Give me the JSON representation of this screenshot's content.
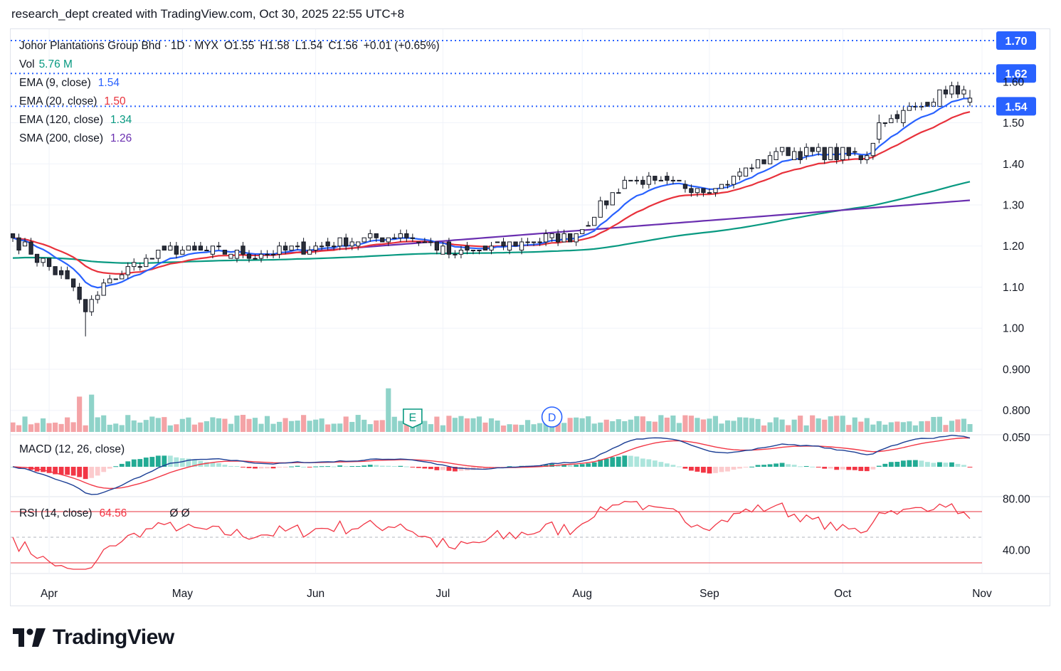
{
  "header": "research_dept created with TradingView.com, Oct 30, 2025 22:55 UTC+8",
  "legend": {
    "symbol": "Johor Plantations Group Bhd · 1D · MYX",
    "open": "O1.55",
    "high": "H1.58",
    "low": "L1.54",
    "close": "C1.56",
    "change": "+0.01 (+0.65%)",
    "vol_label": "Vol",
    "vol_value": "5.76 M",
    "ema9_label": "EMA (9, close)",
    "ema9_value": "1.54",
    "ema20_label": "EMA (20, close)",
    "ema20_value": "1.50",
    "ema120_label": "EMA (120, close)",
    "ema120_value": "1.34",
    "sma200_label": "SMA (200, close)",
    "sma200_value": "1.26",
    "macd_label": "MACD (12, 26, close)",
    "rsi_label": "RSI (14, close)",
    "rsi_value": "64.56",
    "rsi_extra": "Ø Ø"
  },
  "colors": {
    "up": "#ffffff",
    "down": "#2a2e39",
    "candle_outline": "#131722",
    "ema9": "#2962ff",
    "ema20": "#e8313b",
    "ema120": "#089981",
    "sma200": "#6a2fb0",
    "vol_up": "#8fd3c9",
    "vol_down": "#f4a3a6",
    "price_tag": "#2962ff",
    "rsi": "#f23645",
    "macd_line": "#1c3f95",
    "signal_line": "#f23645",
    "event_earnings": "#089981",
    "event_dividend": "#2962ff",
    "event_flash": "#9c27b0"
  },
  "price_axis": {
    "ticks": [
      "1.50",
      "1.40",
      "1.30",
      "1.20",
      "1.10",
      "1.00",
      "0.900",
      "0.800"
    ],
    "tick_values": [
      1.5,
      1.4,
      1.3,
      1.2,
      1.1,
      1.0,
      0.9,
      0.8
    ],
    "partial_tick": "1.60",
    "levels": [
      {
        "label": "1.70",
        "value": 1.7
      },
      {
        "label": "1.62",
        "value": 1.62
      },
      {
        "label": "1.54",
        "value": 1.54
      }
    ]
  },
  "macd_axis": {
    "ticks": [
      "0.050"
    ]
  },
  "rsi_axis": {
    "ticks": [
      "80.00",
      "40.00"
    ],
    "tick_values": [
      80,
      40
    ],
    "upper_band": 70,
    "lower_band": 30,
    "mid": 50
  },
  "time_axis": [
    "Apr",
    "May",
    "Jun",
    "Jul",
    "Aug",
    "Sep",
    "Oct",
    "Nov"
  ],
  "event_markers": [
    {
      "type": "earnings",
      "label": "E",
      "bar": 66
    },
    {
      "type": "dividend",
      "label": "D",
      "bar": 89
    },
    {
      "type": "earnings",
      "label": "E",
      "bar": 175
    },
    {
      "type": "dividend",
      "label": "D",
      "bar": 192
    },
    {
      "type": "flash",
      "label": "⚡",
      "bar": 263
    }
  ],
  "brand": "TradingView",
  "chart_data": {
    "type": "candlestick",
    "symbol": "Johor Plantations Group Bhd",
    "interval": "1D",
    "exchange": "MYX",
    "date_range": [
      "2025-03-24",
      "2025-10-30"
    ],
    "ohlc_anchors": [
      {
        "date": "2025-03-24",
        "close": 1.22
      },
      {
        "date": "2025-04-07",
        "close": 1.1
      },
      {
        "date": "2025-04-09",
        "low": 0.98,
        "close": 1.04
      },
      {
        "date": "2025-04-15",
        "close": 1.12
      },
      {
        "date": "2025-04-28",
        "close": 1.19
      },
      {
        "date": "2025-05-20",
        "close": 1.18
      },
      {
        "date": "2025-06-20",
        "close": 1.23
      },
      {
        "date": "2025-07-03",
        "close": 1.18
      },
      {
        "date": "2025-07-31",
        "close": 1.23
      },
      {
        "date": "2025-08-12",
        "close": 1.36
      },
      {
        "date": "2025-09-02",
        "close": 1.34
      },
      {
        "date": "2025-09-16",
        "close": 1.43
      },
      {
        "date": "2025-10-07",
        "close": 1.42
      },
      {
        "date": "2025-10-09",
        "high": 1.52,
        "close": 1.5
      },
      {
        "date": "2025-10-24",
        "close": 1.57
      },
      {
        "date": "2025-10-27",
        "high": 1.6,
        "close": 1.59
      },
      {
        "date": "2025-10-30",
        "open": 1.55,
        "high": 1.58,
        "low": 1.54,
        "close": 1.56
      }
    ],
    "indicators": {
      "ema9_last": 1.54,
      "ema20_last": 1.5,
      "ema120_last": 1.34,
      "sma200_last": 1.26,
      "volume_last": "5.76 M",
      "rsi_last": 64.56
    },
    "ylim": [
      0.79,
      1.72
    ]
  }
}
